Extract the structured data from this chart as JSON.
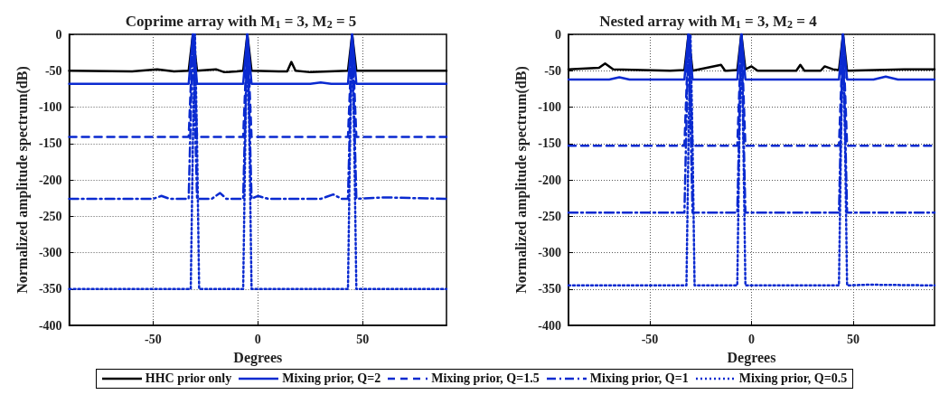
{
  "chart_data": [
    {
      "type": "line",
      "title": "Coprime array with M$_{1}$ = 3, M$_{2}$ = 5",
      "xlabel": "Degrees",
      "ylabel": "Normalized amplitude spectrum(dB)",
      "xlim": [
        -90,
        90
      ],
      "xticks": [
        -50,
        0,
        50
      ],
      "ylim": [
        -400,
        0
      ],
      "yticks": [
        0,
        -50,
        -100,
        -150,
        -200,
        -250,
        -300,
        -350,
        -400
      ],
      "grid": true,
      "legend": "bottom",
      "marker": "none",
      "series": [
        {
          "name": "HHC prior only",
          "color": "#000000",
          "line_style": "solid",
          "x": [
            -90,
            -60,
            -48,
            -40,
            -33,
            -31,
            -29,
            -20,
            -16,
            -10,
            -7,
            -5,
            -3,
            10,
            14,
            16,
            18,
            25,
            43,
            45,
            47,
            90
          ],
          "values": [
            -50,
            -51,
            -48,
            -51,
            -50,
            0,
            -50,
            -48,
            -52,
            -51,
            -50,
            0,
            -50,
            -51,
            -51,
            -38,
            -50,
            -52,
            -50,
            0,
            -50,
            -50
          ]
        },
        {
          "name": "Mixing prior, Q=2",
          "color": "#0a2ad0",
          "line_style": "solid",
          "x": [
            -90,
            -33,
            -31,
            -29,
            -7,
            -5,
            -3,
            25,
            30,
            35,
            43,
            45,
            47,
            90
          ],
          "values": [
            -68,
            -68,
            0,
            -68,
            -68,
            0,
            -68,
            -68,
            -66,
            -68,
            -68,
            0,
            -68,
            -68
          ]
        },
        {
          "name": "Mixing prior, Q=1.5",
          "color": "#0a2ad0",
          "line_style": "dashed",
          "x": [
            -90,
            -33,
            -31,
            -29,
            -7,
            -5,
            -3,
            -1,
            43,
            45,
            47,
            90
          ],
          "values": [
            -141,
            -141,
            0,
            -141,
            -141,
            0,
            -141,
            -141,
            -141,
            0,
            -141,
            -141
          ]
        },
        {
          "name": "Mixing prior, Q=1",
          "color": "#0a2ad0",
          "line_style": "dashdot",
          "x": [
            -90,
            -50,
            -46,
            -42,
            -33,
            -31,
            -29,
            -22,
            -18,
            -15,
            -7,
            -5,
            -3,
            0,
            5,
            30,
            36,
            40,
            43,
            45,
            47,
            60,
            90
          ],
          "values": [
            -226,
            -226,
            -222,
            -226,
            -226,
            0,
            -226,
            -226,
            -218,
            -226,
            -226,
            0,
            -226,
            -222,
            -226,
            -226,
            -220,
            -226,
            -226,
            0,
            -226,
            -224,
            -226
          ]
        },
        {
          "name": "Mixing prior, Q=0.5",
          "color": "#0a2ad0",
          "line_style": "dotted",
          "x": [
            -90,
            -32,
            -31,
            -30,
            -29,
            -28,
            -7,
            -6,
            -5,
            -4,
            -3,
            43,
            44,
            45,
            46,
            47,
            90
          ],
          "values": [
            -350,
            -350,
            -150,
            0,
            -150,
            -350,
            -350,
            -150,
            0,
            -150,
            -350,
            -350,
            -150,
            0,
            -150,
            -350,
            -350
          ]
        }
      ]
    },
    {
      "type": "line",
      "title": "Nested array with M$_{1}$ = 3, M$_{2}$ = 4",
      "xlabel": "Degrees",
      "ylabel": "Normalized amplitude spectrum(dB)",
      "xlim": [
        -90,
        90
      ],
      "xticks": [
        -50,
        0,
        50
      ],
      "ylim": [
        -400,
        0
      ],
      "yticks": [
        0,
        -50,
        -100,
        -150,
        -200,
        -250,
        -300,
        -350,
        -400
      ],
      "grid": true,
      "legend": "bottom",
      "marker": "none",
      "series": [
        {
          "name": "HHC prior only",
          "color": "#000000",
          "line_style": "solid",
          "x": [
            -90,
            -75,
            -72,
            -68,
            -40,
            -33,
            -31,
            -29,
            -15,
            -13,
            -12,
            -7,
            -5,
            -3,
            0,
            3,
            22,
            24,
            26,
            34,
            36,
            40,
            43,
            45,
            47,
            75,
            90
          ],
          "values": [
            -48,
            -46,
            -40,
            -48,
            -50,
            -49,
            0,
            -50,
            -42,
            -50,
            -50,
            -49,
            0,
            -48,
            -44,
            -50,
            -50,
            -42,
            -50,
            -50,
            -44,
            -48,
            -49,
            0,
            -50,
            -48,
            -48
          ]
        },
        {
          "name": "Mixing prior, Q=2",
          "color": "#0a2ad0",
          "line_style": "solid",
          "x": [
            -90,
            -70,
            -65,
            -60,
            -33,
            -31,
            -29,
            -7,
            -5,
            -3,
            43,
            45,
            47,
            60,
            66,
            72,
            90
          ],
          "values": [
            -62,
            -62,
            -59,
            -62,
            -62,
            0,
            -62,
            -62,
            0,
            -62,
            -62,
            0,
            -62,
            -62,
            -58,
            -62,
            -62
          ]
        },
        {
          "name": "Mixing prior, Q=1.5",
          "color": "#0a2ad0",
          "line_style": "dashed",
          "x": [
            -90,
            -33,
            -31,
            -29,
            -7,
            -5,
            -3,
            43,
            45,
            47,
            90
          ],
          "values": [
            -153,
            -153,
            0,
            -153,
            -153,
            0,
            -153,
            -153,
            0,
            -153,
            -153
          ]
        },
        {
          "name": "Mixing prior, Q=1",
          "color": "#0a2ad0",
          "line_style": "dashdot",
          "x": [
            -90,
            -33,
            -31,
            -29,
            -7,
            -5,
            -3,
            43,
            45,
            47,
            90
          ],
          "values": [
            -245,
            -245,
            0,
            -245,
            -245,
            0,
            -245,
            -245,
            0,
            -245,
            -245
          ]
        },
        {
          "name": "Mixing prior, Q=0.5",
          "color": "#0a2ad0",
          "line_style": "dotted",
          "x": [
            -90,
            -32,
            -31,
            -30,
            -29,
            -28,
            -7,
            -6,
            -5,
            -4,
            -3,
            43,
            44,
            45,
            46,
            47,
            58,
            90
          ],
          "values": [
            -345,
            -345,
            -150,
            0,
            -150,
            -345,
            -345,
            -150,
            0,
            -150,
            -345,
            -345,
            -150,
            0,
            -150,
            -345,
            -344,
            -345
          ]
        }
      ]
    }
  ]
}
